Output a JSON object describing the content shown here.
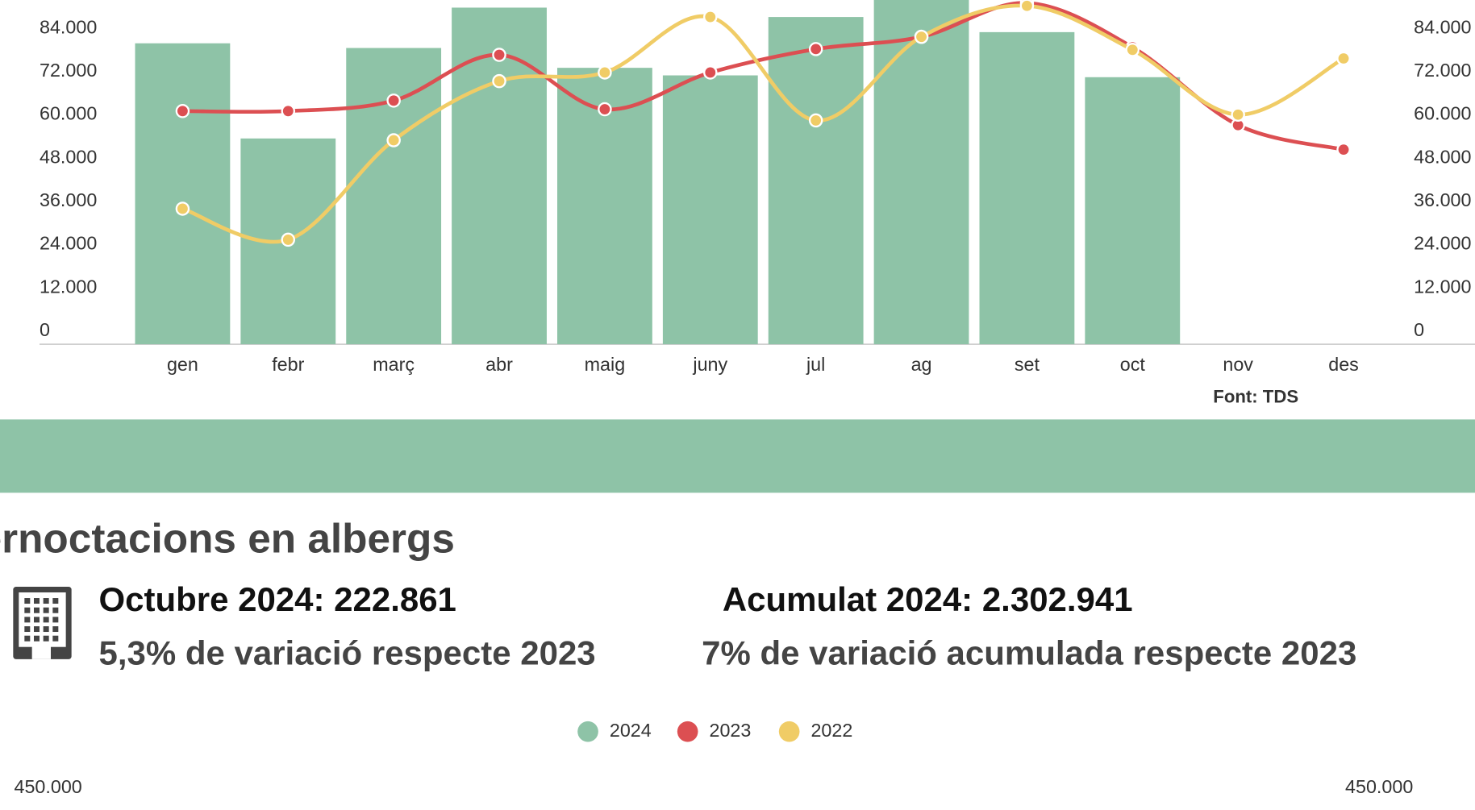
{
  "chart_data": [
    {
      "type": "combo",
      "categories": [
        "gen",
        "febr",
        "març",
        "abr",
        "maig",
        "juny",
        "jul",
        "ag",
        "set",
        "oct",
        "nov",
        "des"
      ],
      "series": [
        {
          "type": "bar",
          "color": "#8ec3a7",
          "values": [
            83500,
            57100,
            82200,
            93400,
            76700,
            74600,
            90800,
            97000,
            86600,
            74100,
            null,
            null
          ]
        },
        {
          "type": "line",
          "color": "#dc4f52",
          "values": [
            64700,
            64700,
            67600,
            80300,
            65200,
            75400,
            81900,
            85300,
            94700,
            82400,
            60800,
            54000
          ]
        },
        {
          "type": "line",
          "color": "#f0cc66",
          "values": [
            37600,
            29000,
            56600,
            73000,
            75400,
            90800,
            62100,
            85300,
            93900,
            81700,
            63700,
            79300
          ]
        }
      ],
      "ylim": [
        0,
        96000
      ],
      "yticks": [
        0,
        {
          "value": 12000,
          "label": "12.000"
        },
        {
          "value": 24000,
          "label": "24.000"
        },
        {
          "value": 36000,
          "label": "36.000"
        },
        {
          "value": 48000,
          "label": "48.000"
        },
        {
          "value": 60000,
          "label": "60.000"
        },
        {
          "value": 72000,
          "label": "72.000"
        },
        {
          "value": 84000,
          "label": "84.000"
        }
      ],
      "source": "Font: TDS",
      "grid": false
    },
    {
      "type": "combo",
      "title": "Pernoctacions en albergs",
      "series": [
        {
          "name": "2024",
          "color": "#8ec3a7"
        },
        {
          "name": "2023",
          "color": "#dc4f52"
        },
        {
          "name": "2022",
          "color": "#f0cc66"
        }
      ],
      "yticks": [
        {
          "value": 450000,
          "label": "450.000"
        }
      ]
    }
  ],
  "stats": {
    "month": "Octubre 2024: 222.861",
    "month_variation": "5,3% de variació respecte 2023",
    "cumulative": "Acumulat 2024: 2.302.941",
    "cumulative_variation": "7% de variació acumulada respecte 2023"
  }
}
